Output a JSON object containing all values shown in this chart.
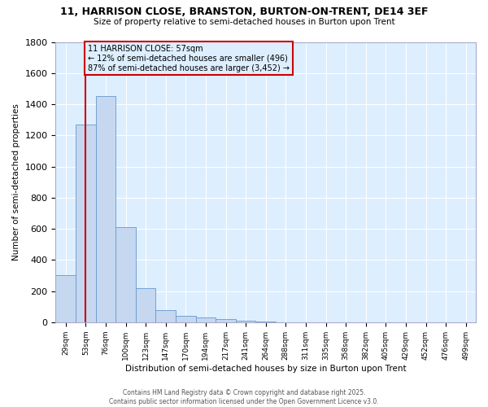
{
  "title": "11, HARRISON CLOSE, BRANSTON, BURTON-ON-TRENT, DE14 3EF",
  "subtitle": "Size of property relative to semi-detached houses in Burton upon Trent",
  "xlabel": "Distribution of semi-detached houses by size in Burton upon Trent",
  "ylabel": "Number of semi-detached properties",
  "bin_labels": [
    "29sqm",
    "53sqm",
    "76sqm",
    "100sqm",
    "123sqm",
    "147sqm",
    "170sqm",
    "194sqm",
    "217sqm",
    "241sqm",
    "264sqm",
    "288sqm",
    "311sqm",
    "335sqm",
    "358sqm",
    "382sqm",
    "405sqm",
    "429sqm",
    "452sqm",
    "476sqm",
    "499sqm"
  ],
  "bar_values": [
    300,
    1270,
    1450,
    610,
    220,
    75,
    40,
    30,
    20,
    10,
    5,
    0,
    0,
    0,
    0,
    0,
    0,
    0,
    0,
    0,
    0
  ],
  "bar_color": "#c5d8f0",
  "bar_edge_color": "#6699cc",
  "property_bin_index": 1,
  "vline_color": "#cc0000",
  "annotation_title": "11 HARRISON CLOSE: 57sqm",
  "annotation_line1": "← 12% of semi-detached houses are smaller (496)",
  "annotation_line2": "87% of semi-detached houses are larger (3,452) →",
  "annotation_box_color": "#cc0000",
  "ylim": [
    0,
    1800
  ],
  "yticks": [
    0,
    200,
    400,
    600,
    800,
    1000,
    1200,
    1400,
    1600,
    1800
  ],
  "figure_bg": "#ffffff",
  "plot_bg": "#ddeeff",
  "grid_color": "#ffffff",
  "footer_line1": "Contains HM Land Registry data © Crown copyright and database right 2025.",
  "footer_line2": "Contains public sector information licensed under the Open Government Licence v3.0."
}
